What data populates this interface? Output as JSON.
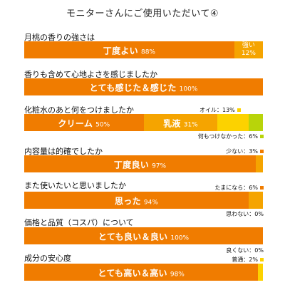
{
  "page_title": "モニターさんにご使用いただいて④",
  "colors": {
    "orange": "#f07c00",
    "gold": "#f5a400",
    "yellow": "#fcd200",
    "lime": "#b8d40a"
  },
  "chart_data": [
    {
      "type": "bar",
      "title": "月桃の香りの強さは",
      "series": [
        {
          "name": "丁度よい",
          "value": 88,
          "label": "丁度よい",
          "pct": "88%"
        },
        {
          "name": "強い",
          "value": 12,
          "label": "強い",
          "pct": "12%"
        }
      ]
    },
    {
      "type": "bar",
      "title": "香りも含めて心地よさを感じましたか",
      "series": [
        {
          "name": "とても感じた＆感じた",
          "value": 100,
          "label": "とても感じた＆感じた",
          "pct": "100%"
        }
      ]
    },
    {
      "type": "bar",
      "title": "化粧水のあと何をつけましたか",
      "series": [
        {
          "name": "クリーム",
          "value": 50,
          "label": "クリーム",
          "pct": "50%"
        },
        {
          "name": "乳液",
          "value": 31,
          "label": "乳液",
          "pct": "31%"
        },
        {
          "name": "オイル",
          "value": 13,
          "ext": "オイル：13%"
        },
        {
          "name": "何もつけなかった",
          "value": 6,
          "ext": "何もつけなかった：6%"
        }
      ]
    },
    {
      "type": "bar",
      "title": "内容量は的確でしたか",
      "series": [
        {
          "name": "丁度良い",
          "value": 97,
          "label": "丁度良い",
          "pct": "97%"
        },
        {
          "name": "少ない",
          "value": 3,
          "ext": "少ない：3%"
        }
      ]
    },
    {
      "type": "bar",
      "title": "また使いたいと思いましたか",
      "series": [
        {
          "name": "思った",
          "value": 94,
          "label": "思った",
          "pct": "94%"
        },
        {
          "name": "たまになら",
          "value": 6,
          "ext": "たまになら：6%"
        },
        {
          "name": "思わない",
          "value": 0,
          "ext": "思わない：0%"
        }
      ]
    },
    {
      "type": "bar",
      "title": "価格と品質（コスパ）について",
      "series": [
        {
          "name": "とても良い＆良い",
          "value": 100,
          "label": "とても良い＆良い",
          "pct": "100%"
        },
        {
          "name": "良くない",
          "value": 0,
          "ext": "良くない：0%"
        }
      ]
    },
    {
      "type": "bar",
      "title": "成分の安心度",
      "series": [
        {
          "name": "とても高い＆高い",
          "value": 98,
          "label": "とても高い＆高い",
          "pct": "98%"
        },
        {
          "name": "普通",
          "value": 2,
          "ext": "普通：2%"
        }
      ]
    }
  ]
}
